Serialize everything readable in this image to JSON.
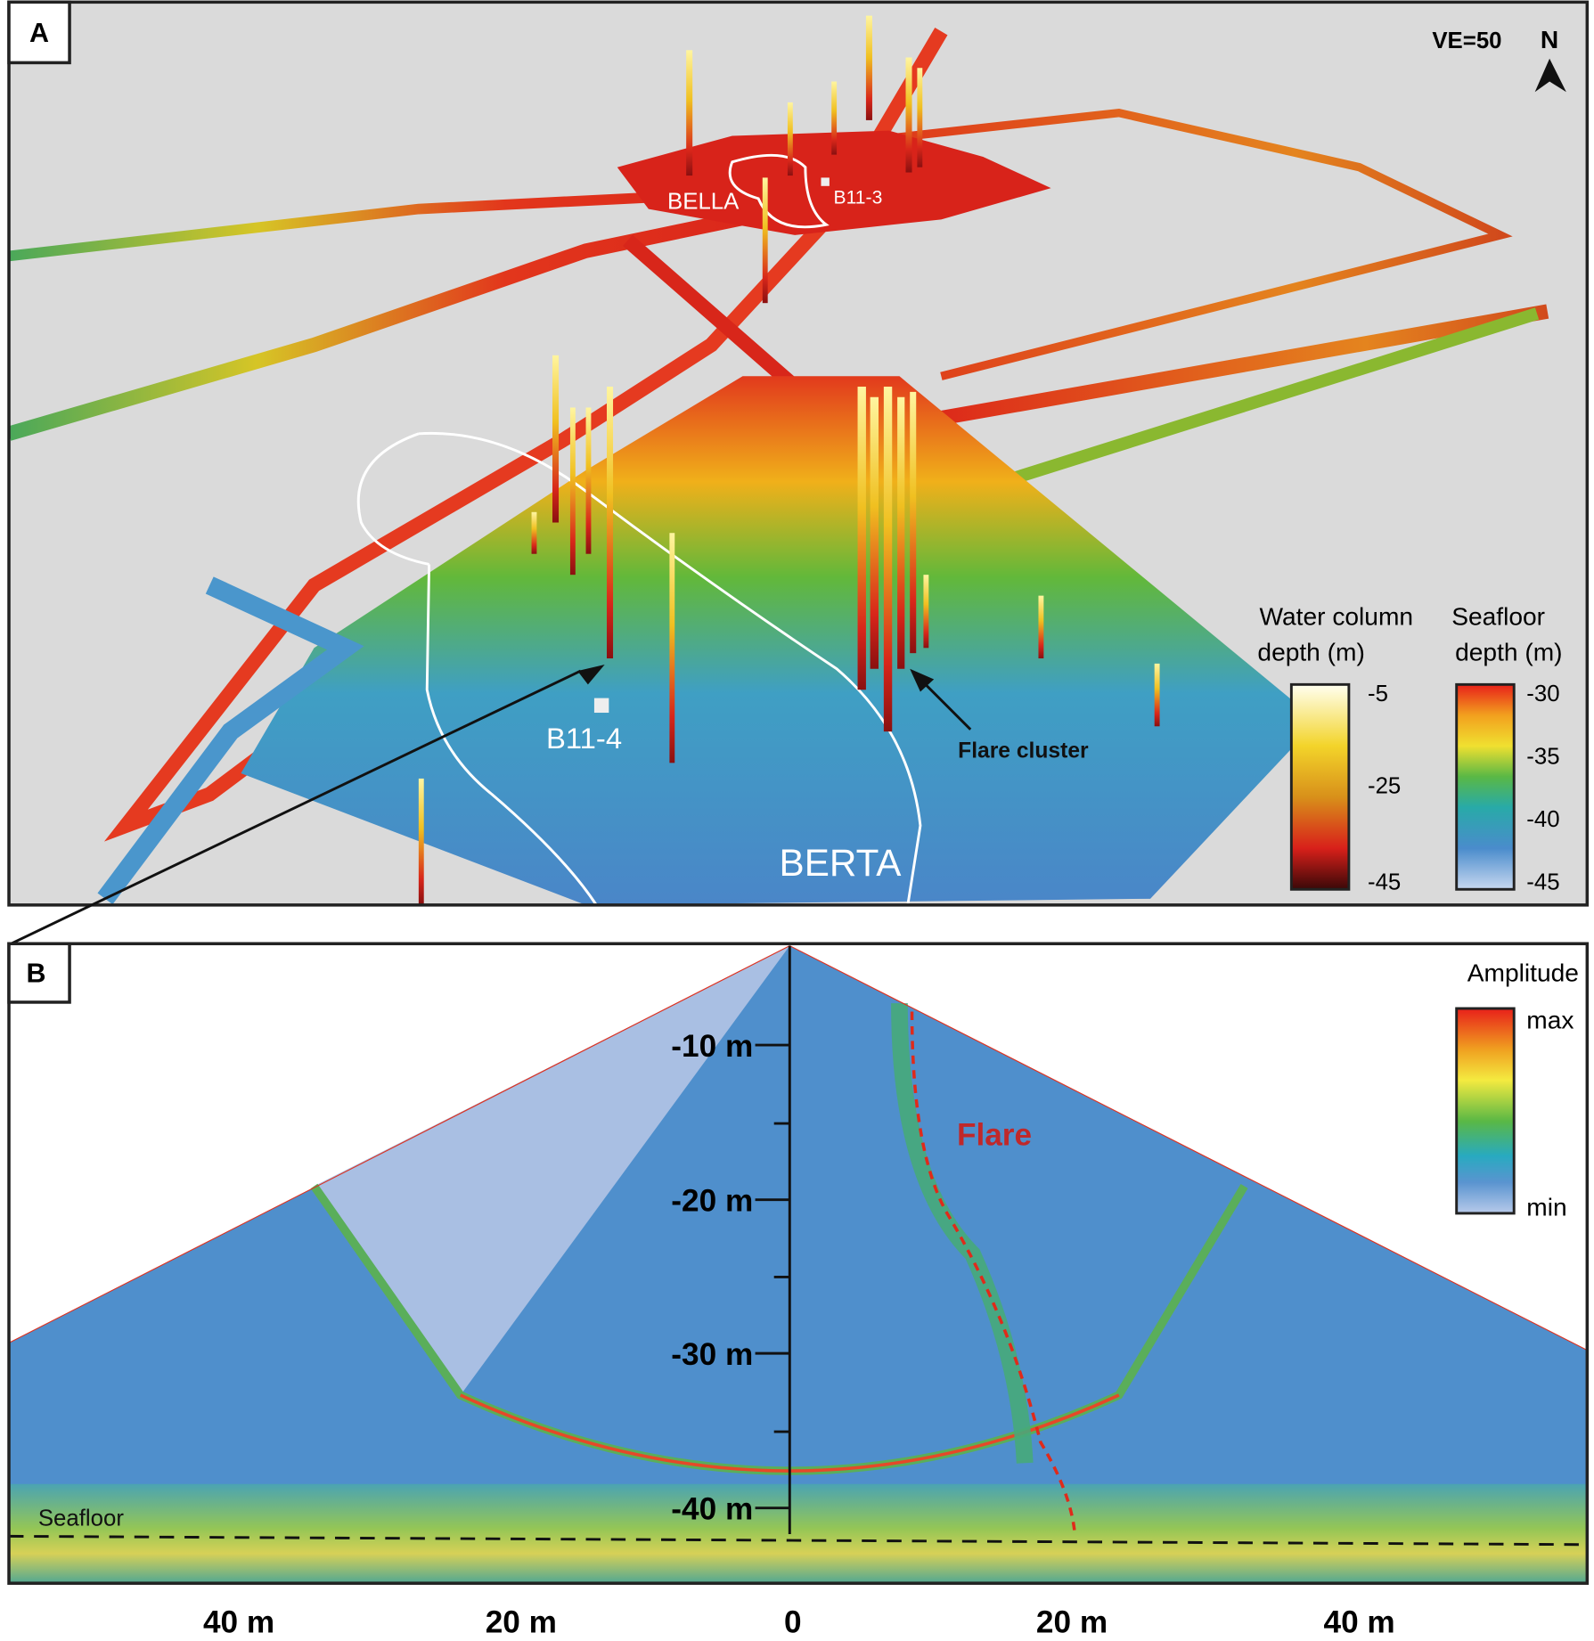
{
  "panel_a": {
    "label": "A",
    "ve": "VE=50",
    "north": "N",
    "bella": "BELLA",
    "b11_3": "B11-3",
    "b11_4": "B11-4",
    "berta": "BERTA",
    "annotation": "Flare cluster",
    "legend_water": {
      "title": [
        "Water column",
        "depth (m)"
      ],
      "ticks": [
        "-5",
        "-25",
        "-45"
      ]
    },
    "legend_seafloor": {
      "title": [
        "Seafloor",
        "depth (m)"
      ],
      "ticks": [
        "-30",
        "-35",
        "-40",
        "-45"
      ]
    }
  },
  "panel_b": {
    "label": "B",
    "flare": "Flare",
    "seafloor": "Seafloor",
    "amplitude": {
      "title": "Amplitude",
      "max": "max",
      "min": "min"
    },
    "depth_ticks": [
      "-10 m",
      "-20 m",
      "-30 m",
      "-40 m"
    ],
    "range_ticks": [
      "40 m",
      "20 m",
      "0",
      "20 m",
      "40 m"
    ]
  }
}
